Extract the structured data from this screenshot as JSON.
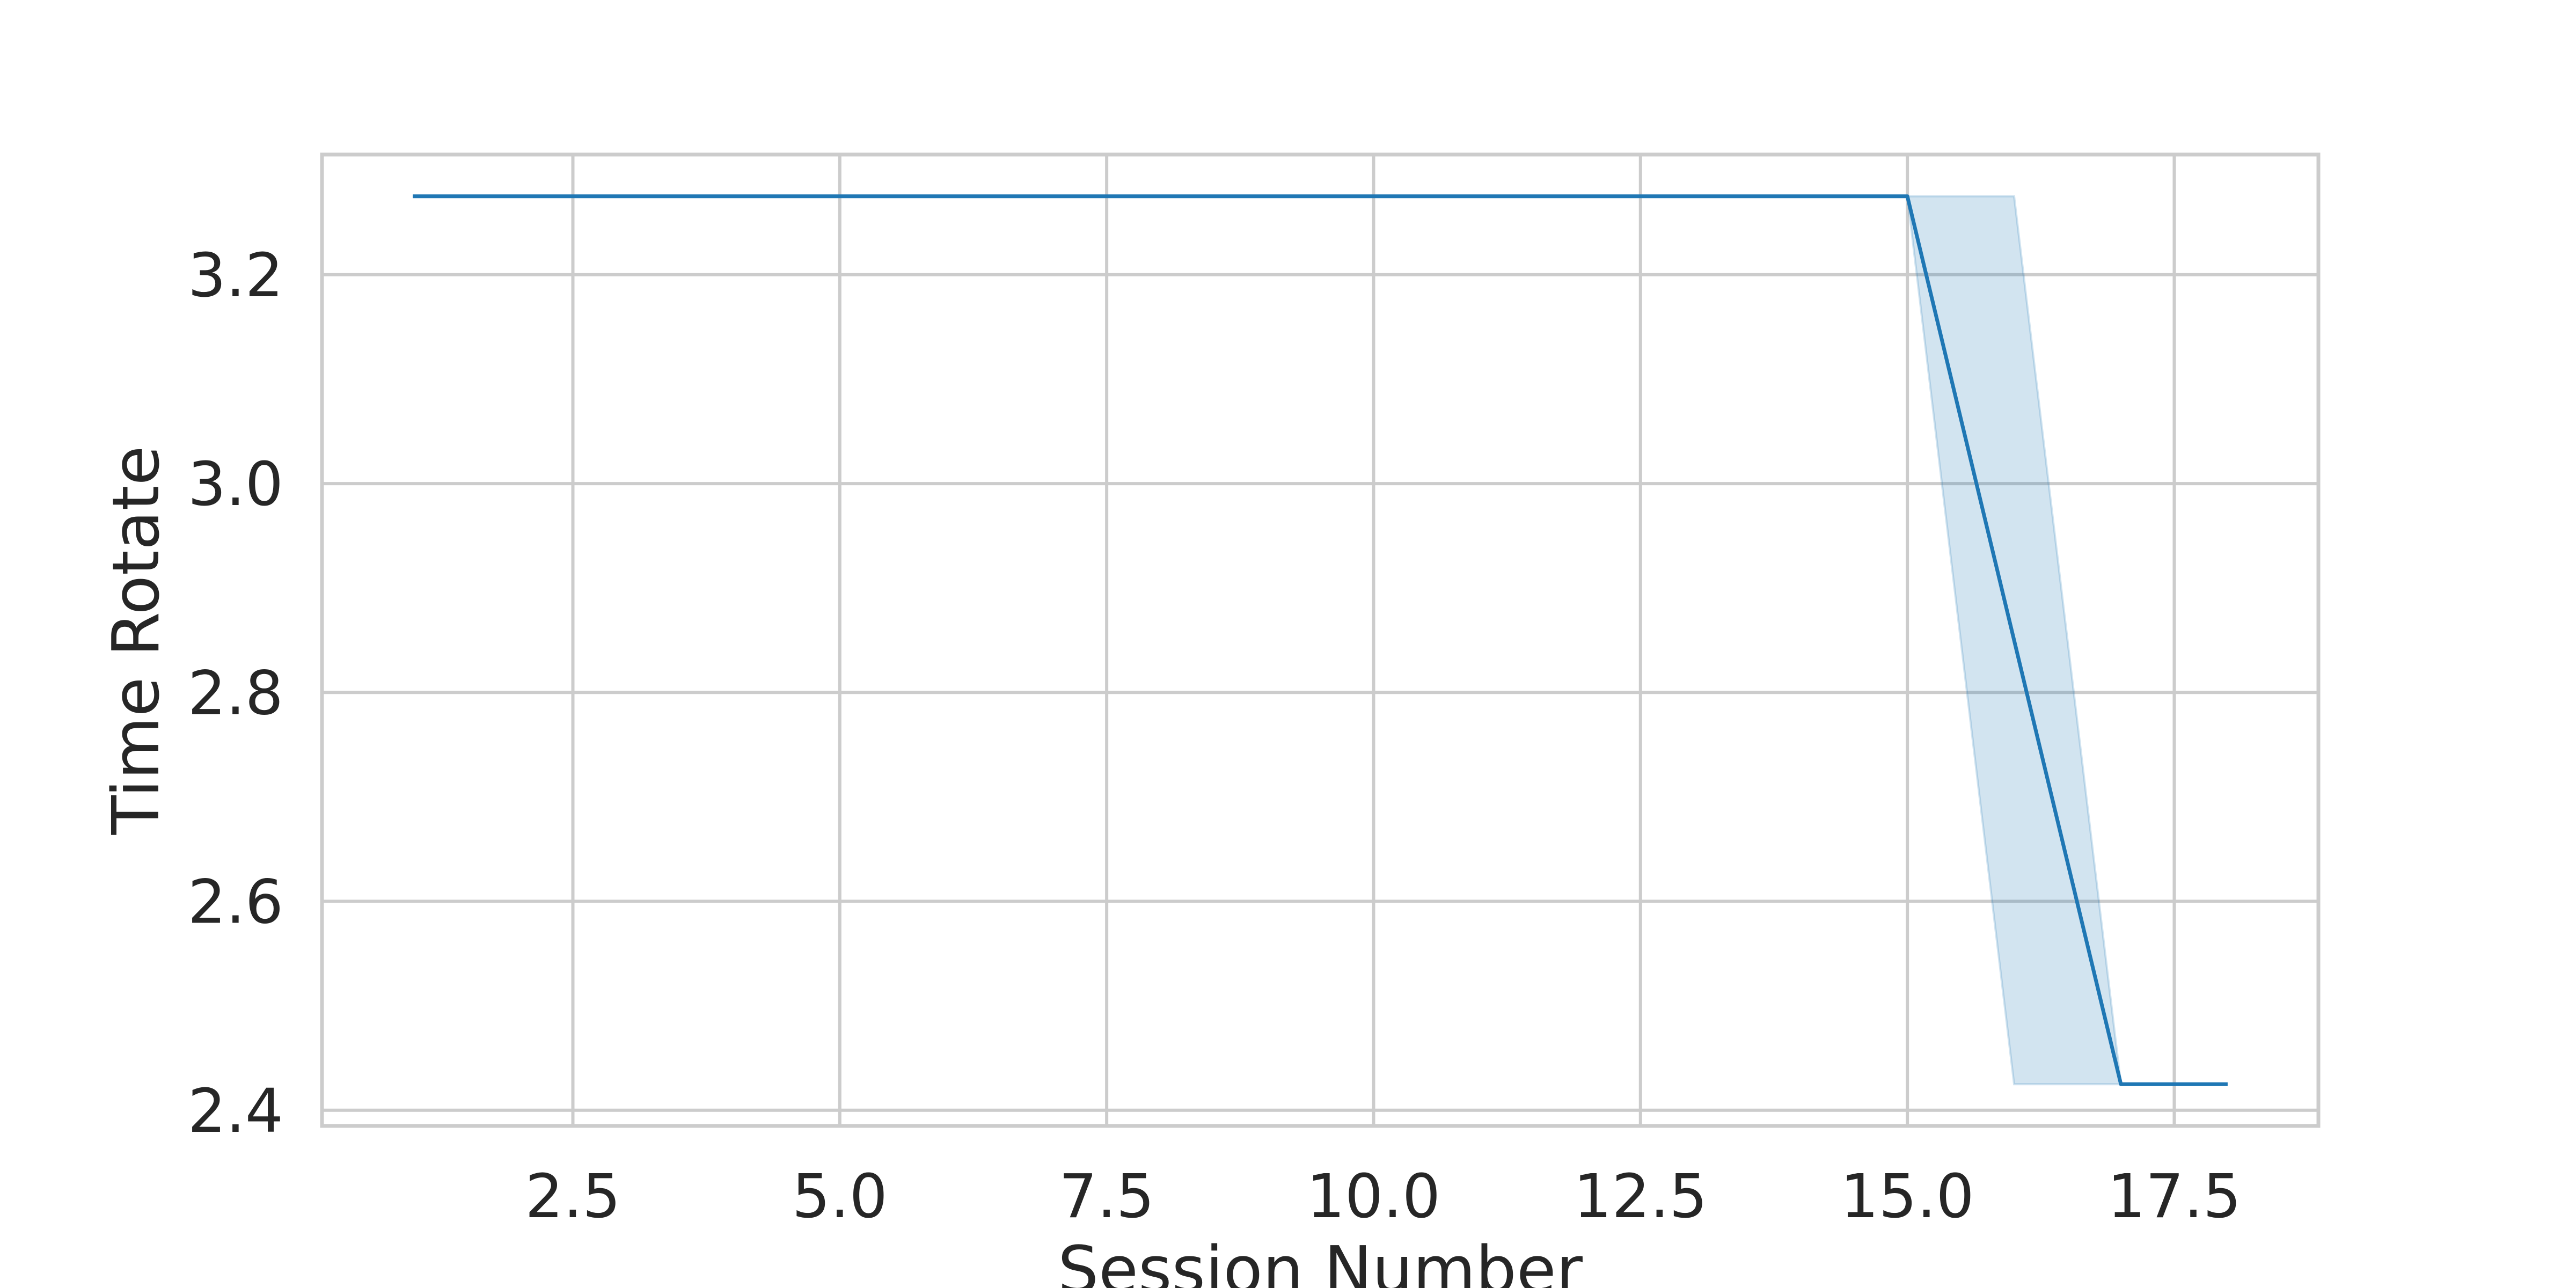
{
  "chart_data": {
    "type": "line",
    "title": "",
    "xlabel": "Session Number",
    "ylabel": "Time Rotate",
    "xlim": [
      0.15,
      18.85
    ],
    "ylim": [
      2.385,
      3.315
    ],
    "xticks": [
      2.5,
      5.0,
      7.5,
      10.0,
      12.5,
      15.0,
      17.5
    ],
    "xtick_labels": [
      "2.5",
      "5.0",
      "7.5",
      "10.0",
      "12.5",
      "15.0",
      "17.5"
    ],
    "yticks": [
      2.4,
      2.6,
      2.8,
      3.0,
      3.2
    ],
    "ytick_labels": [
      "2.4",
      "2.6",
      "2.8",
      "3.0",
      "3.2"
    ],
    "grid": true,
    "legend": "none",
    "series": [
      {
        "x": [
          1,
          2,
          3,
          4,
          5,
          6,
          7,
          8,
          9,
          10,
          11,
          12,
          13,
          14,
          15,
          16,
          17,
          18
        ],
        "y": [
          3.275,
          3.275,
          3.275,
          3.275,
          3.275,
          3.275,
          3.275,
          3.275,
          3.275,
          3.275,
          3.275,
          3.275,
          3.275,
          3.275,
          3.275,
          2.85,
          2.425,
          2.425
        ],
        "ci_lower": [
          3.275,
          3.275,
          3.275,
          3.275,
          3.275,
          3.275,
          3.275,
          3.275,
          3.275,
          3.275,
          3.275,
          3.275,
          3.275,
          3.275,
          3.275,
          2.425,
          2.425,
          2.425
        ],
        "ci_upper": [
          3.275,
          3.275,
          3.275,
          3.275,
          3.275,
          3.275,
          3.275,
          3.275,
          3.275,
          3.275,
          3.275,
          3.275,
          3.275,
          3.275,
          3.275,
          3.275,
          2.425,
          2.425
        ],
        "color": "#1f77b4"
      }
    ]
  }
}
